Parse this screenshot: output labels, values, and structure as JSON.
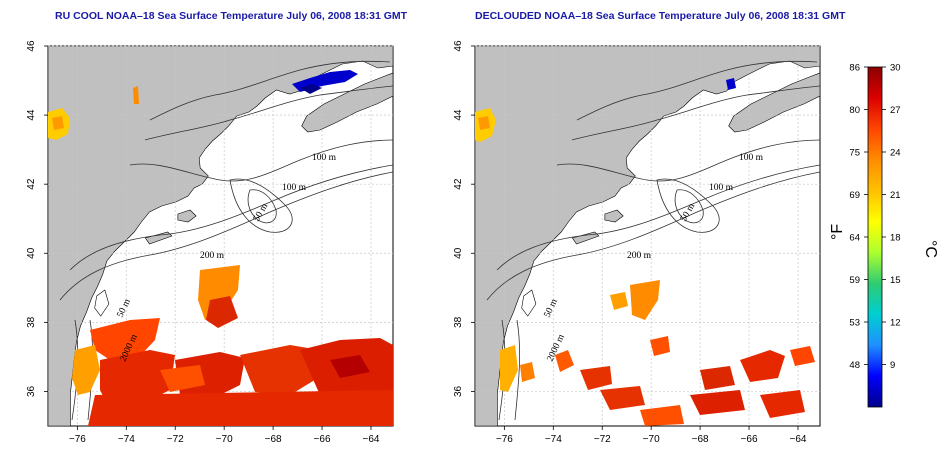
{
  "panels": [
    {
      "title": "RU COOL NOAA–18 Sea Surface Temperature July 06, 2008 18:31 GMT",
      "contour_labels": [
        "100 m",
        "100 m",
        "50 m",
        "200 m",
        "50 m",
        "2000 m"
      ]
    },
    {
      "title": "DECLOUDED NOAA–18 Sea Surface Temperature July 06, 2008 18:31 GMT",
      "contour_labels": [
        "100 m",
        "100 m",
        "50 m",
        "200 m",
        "50 m",
        "2000 m"
      ]
    }
  ],
  "axes": {
    "lon_ticks": [
      "−76",
      "−74",
      "−72",
      "−70",
      "−68",
      "−66",
      "−64"
    ],
    "lat_ticks": [
      "36",
      "38",
      "40",
      "42",
      "44",
      "46"
    ],
    "lon_values": [
      -76,
      -74,
      -72,
      -70,
      -68,
      -66,
      -64
    ],
    "lat_values": [
      36,
      38,
      40,
      42,
      44,
      46
    ],
    "lon_range": [
      -77.2,
      -63.1
    ],
    "lat_range": [
      35.0,
      46.0
    ]
  },
  "colorbar": {
    "fahrenheit_unit": "°F",
    "celsius_unit": "°C",
    "fahrenheit_ticks": [
      "86",
      "80",
      "75",
      "69",
      "64",
      "59",
      "53",
      "48"
    ],
    "celsius_ticks": [
      "30",
      "27",
      "24",
      "21",
      "18",
      "15",
      "12",
      "9"
    ],
    "celsius_values": [
      30,
      27,
      24,
      21,
      18,
      15,
      12,
      9
    ],
    "celsius_range": [
      6,
      30
    ],
    "colors": [
      "#00008b",
      "#0000ff",
      "#1e90ff",
      "#00ced1",
      "#2ecc71",
      "#adff2f",
      "#ffff00",
      "#ffc000",
      "#ff8c00",
      "#ff4500",
      "#dc0000",
      "#8b0000"
    ]
  },
  "colors": {
    "land": "#c0c0c0",
    "title": "#1a1aa6",
    "grid": "#c8c8c8"
  }
}
